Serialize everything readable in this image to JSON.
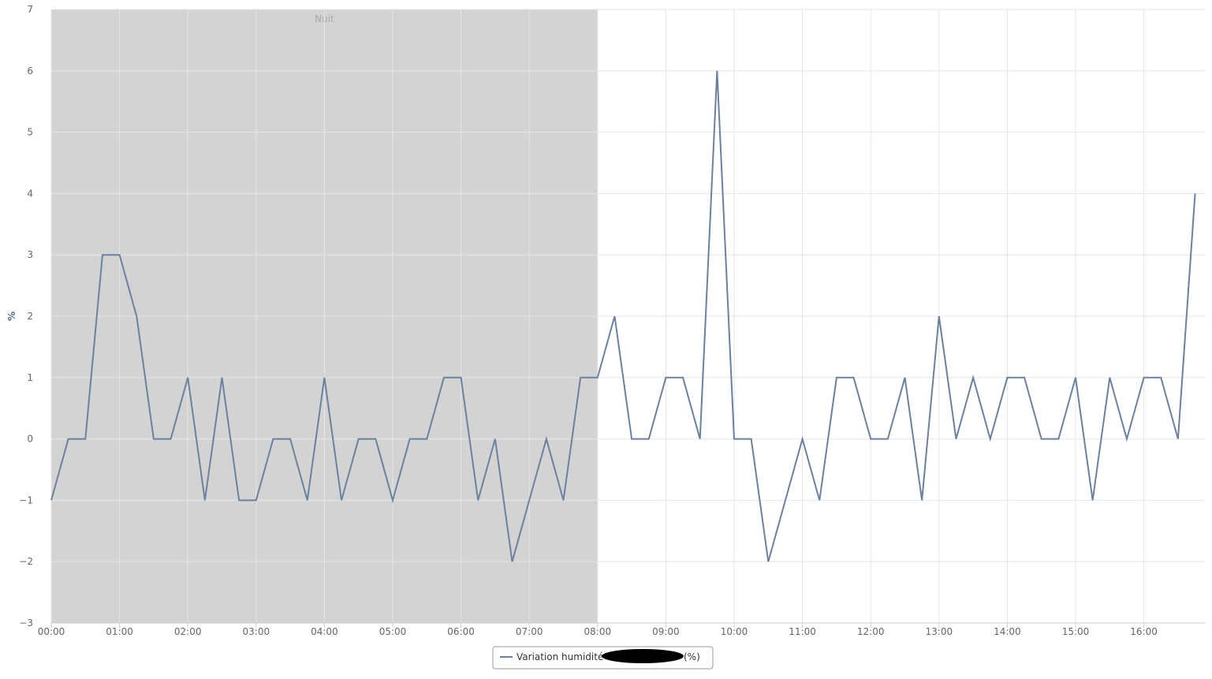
{
  "chart_data": {
    "type": "line",
    "ylabel": "%",
    "ylim": [
      -3,
      7
    ],
    "yticks": [
      "7",
      "6",
      "5",
      "4",
      "3",
      "2",
      "1",
      "0",
      "−1",
      "−2",
      "−3"
    ],
    "xticks": [
      "00:00",
      "01:00",
      "02:00",
      "03:00",
      "04:00",
      "05:00",
      "06:00",
      "07:00",
      "08:00",
      "09:00",
      "10:00",
      "11:00",
      "12:00",
      "13:00",
      "14:00",
      "15:00",
      "16:00"
    ],
    "x_interval_minutes": 15,
    "plot_band": {
      "label": "Nuit",
      "from": "00:00",
      "to": "08:00",
      "color": "#d3d3d3"
    },
    "grid": true,
    "legend_position": "bottom-center",
    "series": [
      {
        "name": "Variation humidité",
        "legend_suffix": "(%)",
        "color": "#6b819f",
        "values": [
          -1,
          0,
          0,
          3,
          3,
          2,
          0,
          0,
          1,
          -1,
          1,
          -1,
          -1,
          0,
          0,
          -1,
          1,
          -1,
          0,
          0,
          -1,
          0,
          0,
          1,
          1,
          -1,
          0,
          -2,
          -1,
          0,
          -1,
          1,
          1,
          2,
          0,
          0,
          1,
          1,
          0,
          6,
          0,
          0,
          -2,
          -1,
          0,
          -1,
          1,
          1,
          0,
          0,
          1,
          -1,
          2,
          0,
          1,
          0,
          1,
          1,
          0,
          0,
          1,
          -1,
          1,
          0,
          1,
          1,
          0,
          4
        ]
      }
    ]
  },
  "legend": {
    "label": "Variation humidité",
    "suffix": "(%)"
  }
}
